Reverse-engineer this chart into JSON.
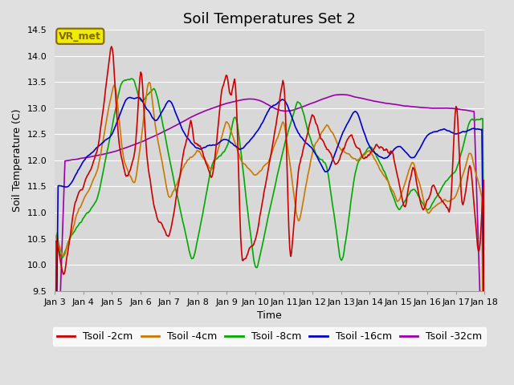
{
  "title": "Soil Temperatures Set 2",
  "xlabel": "Time",
  "ylabel": "Soil Temperature (C)",
  "ylim": [
    9.5,
    14.5
  ],
  "yticks": [
    9.5,
    10.0,
    10.5,
    11.0,
    11.5,
    12.0,
    12.5,
    13.0,
    13.5,
    14.0,
    14.5
  ],
  "xtick_labels": [
    "Jan 3",
    "Jan 4",
    "Jan 5",
    "Jan 6",
    "Jan 7",
    "Jan 8",
    "Jan 9",
    "Jan 10",
    "Jan 11",
    "Jan 12",
    "Jan 13",
    "Jan 14",
    "Jan 15",
    "Jan 16",
    "Jan 17",
    "Jan 18"
  ],
  "line_colors": [
    "#cc0000",
    "#cc7700",
    "#00aa00",
    "#0000cc",
    "#9900aa"
  ],
  "line_labels": [
    "Tsoil -2cm",
    "Tsoil -4cm",
    "Tsoil -8cm",
    "Tsoil -16cm",
    "Tsoil -32cm"
  ],
  "background_color": "#e0e0e0",
  "plot_bg_color": "#d8d8d8",
  "annotation_text": "VR_met",
  "annotation_bg": "#eeee00",
  "annotation_border": "#886600",
  "title_fontsize": 13,
  "axis_fontsize": 9,
  "tick_fontsize": 8,
  "legend_fontsize": 9,
  "n_points": 500
}
